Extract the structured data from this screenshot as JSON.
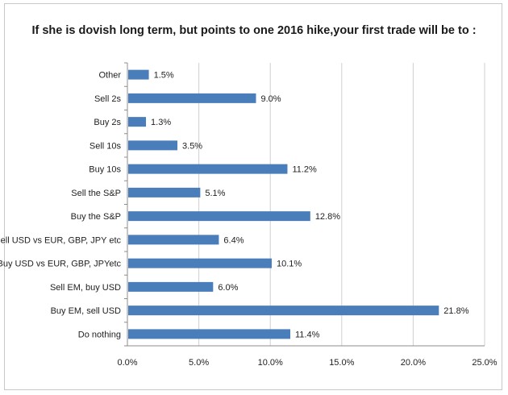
{
  "chart_data": {
    "type": "bar",
    "orientation": "horizontal",
    "title": "If she is dovish long term, but points to one 2016 hike,your first trade will be to :",
    "xlabel": "",
    "ylabel": "",
    "categories": [
      "Other",
      "Sell 2s",
      "Buy 2s",
      "Sell 10s",
      "Buy 10s",
      "Sell the S&P",
      "Buy the S&P",
      "Sell USD vs EUR, GBP, JPY etc",
      "Buy USD vs EUR, GBP, JPYetc",
      "Sell EM, buy USD",
      "Buy EM, sell USD",
      "Do nothing"
    ],
    "values": [
      1.5,
      9.0,
      1.3,
      3.5,
      11.2,
      5.1,
      12.8,
      6.4,
      10.1,
      6.0,
      21.8,
      11.4
    ],
    "value_labels": [
      "1.5%",
      "9.0%",
      "1.3%",
      "3.5%",
      "11.2%",
      "5.1%",
      "12.8%",
      "6.4%",
      "10.1%",
      "6.0%",
      "21.8%",
      "11.4%"
    ],
    "xlim": [
      0,
      25
    ],
    "xticks": [
      0,
      5,
      10,
      15,
      20,
      25
    ],
    "xtick_labels": [
      "0.0%",
      "5.0%",
      "10.0%",
      "15.0%",
      "20.0%",
      "25.0%"
    ],
    "grid": "vertical",
    "legend": "none",
    "bar_color": "#4a7ebb"
  }
}
